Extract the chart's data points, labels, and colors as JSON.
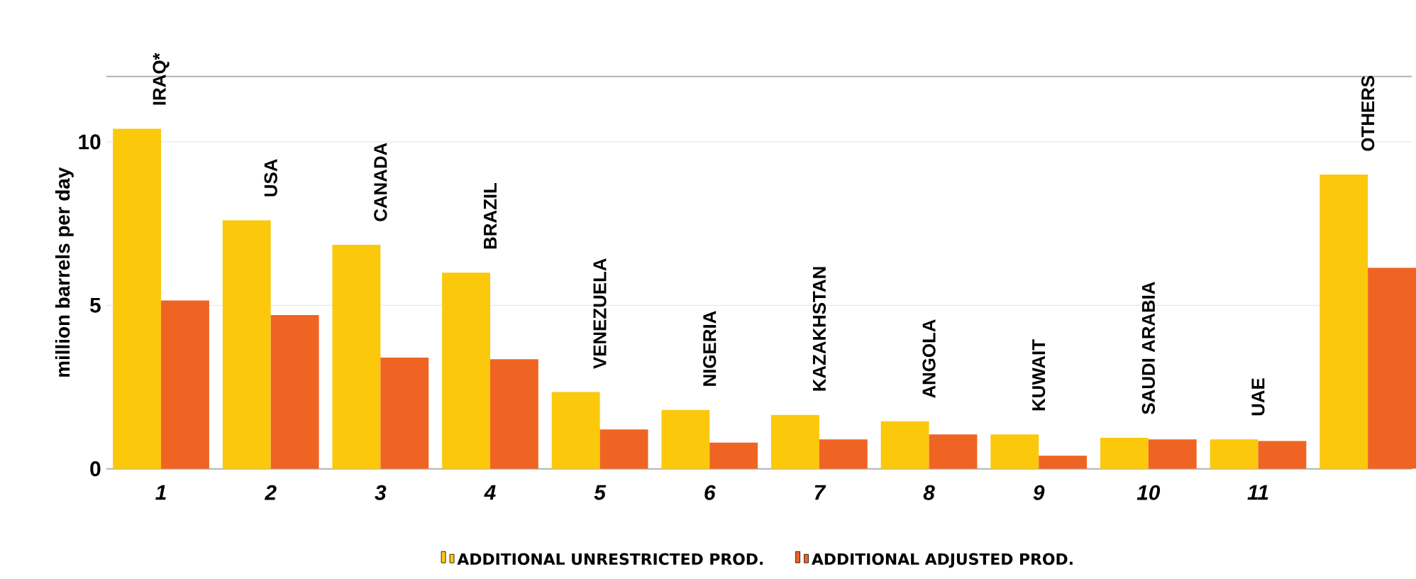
{
  "chart_data": {
    "type": "bar",
    "ylabel": "million barrels per day",
    "categories": [
      "IRAQ*",
      "USA",
      "CANADA",
      "BRAZIL",
      "VENEZUELA",
      "NIGERIA",
      "KAZAKHSTAN",
      "ANGOLA",
      "KUWAIT",
      "SAUDI ARABIA",
      "UAE",
      "OTHERS"
    ],
    "series": [
      {
        "name": "ADDITIONAL UNRESTRICTED PROD.",
        "color": "#fbc80c",
        "values": [
          10.4,
          7.6,
          6.85,
          6.0,
          2.35,
          1.8,
          1.65,
          1.45,
          1.05,
          0.95,
          0.9,
          9.0
        ]
      },
      {
        "name": "ADDITIONAL ADJUSTED PROD.",
        "color": "#ef6422",
        "values": [
          5.15,
          4.7,
          3.4,
          3.35,
          1.2,
          0.8,
          0.9,
          1.05,
          0.4,
          0.9,
          0.85,
          6.15
        ]
      }
    ],
    "annotations": [
      "1",
      "2",
      "3",
      "4",
      "5",
      "6",
      "7",
      "8",
      "9",
      "10",
      "11"
    ],
    "ylim": [
      0,
      12
    ],
    "yticks": [
      0,
      5,
      10
    ],
    "grid": "y",
    "legend": "bottom"
  }
}
